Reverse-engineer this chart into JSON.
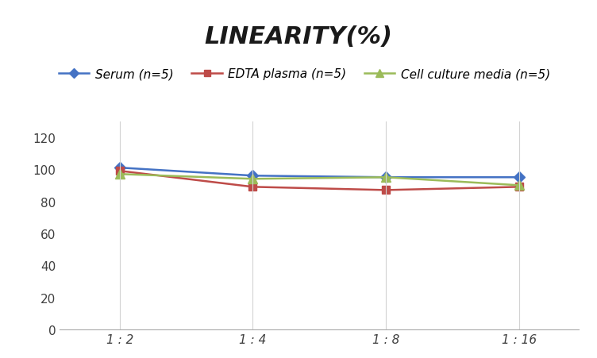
{
  "title": "LINEARITY(%)",
  "x_labels": [
    "1 : 2",
    "1 : 4",
    "1 : 8",
    "1 : 16"
  ],
  "x_positions": [
    0,
    1,
    2,
    3
  ],
  "series": [
    {
      "label": "Serum (n=5)",
      "values": [
        101,
        96,
        95,
        95
      ],
      "color": "#4472C4",
      "marker": "D",
      "markersize": 7
    },
    {
      "label": "EDTA plasma (n=5)",
      "values": [
        99,
        89,
        87,
        89
      ],
      "color": "#BE4B48",
      "marker": "s",
      "markersize": 7
    },
    {
      "label": "Cell culture media (n=5)",
      "values": [
        97,
        94,
        95,
        90
      ],
      "color": "#9BBB59",
      "marker": "^",
      "markersize": 8
    }
  ],
  "ylim": [
    0,
    130
  ],
  "yticks": [
    0,
    20,
    40,
    60,
    80,
    100,
    120
  ],
  "background_color": "#FFFFFF",
  "grid_color": "#D3D3D3",
  "title_fontsize": 22,
  "legend_fontsize": 11,
  "tick_fontsize": 11,
  "title_style": "italic",
  "title_weight": "bold",
  "line_width": 1.8
}
